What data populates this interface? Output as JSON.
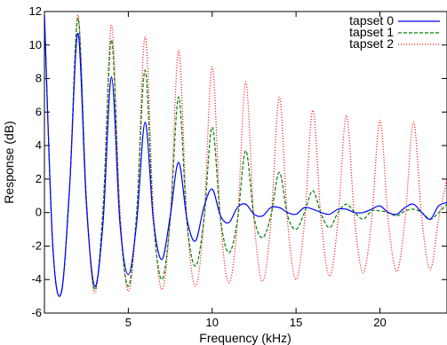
{
  "chart_data": {
    "type": "line",
    "title": "",
    "xlabel": "Frequency (kHz)",
    "ylabel": "Response (dB)",
    "xlim": [
      0,
      24
    ],
    "ylim": [
      -6,
      12
    ],
    "xticks": [
      5,
      10,
      15,
      20
    ],
    "yticks": [
      -6,
      -4,
      -2,
      0,
      2,
      4,
      6,
      8,
      10,
      12
    ],
    "grid": false,
    "legend_position": "top-right",
    "series": [
      {
        "name": "tapset 0",
        "color": "#0000ff",
        "dash": "solid",
        "x": [
          0,
          0.5,
          1,
          1.5,
          2,
          2.5,
          3,
          3.5,
          4,
          4.5,
          5,
          5.5,
          6,
          6.5,
          7,
          7.5,
          8,
          8.5,
          9,
          9.5,
          10,
          10.5,
          11,
          11.5,
          12,
          12.5,
          13,
          13.5,
          14,
          14.5,
          15,
          15.5,
          16,
          16.5,
          17,
          17.5,
          18,
          18.5,
          19,
          19.5,
          20,
          20.5,
          21,
          21.5,
          22,
          22.5,
          23,
          23.5,
          24
        ],
        "y": [
          11.8,
          -2.0,
          -4.8,
          1.5,
          10.7,
          0.5,
          -4.4,
          -0.5,
          8.1,
          -0.6,
          -3.7,
          -0.6,
          5.4,
          -0.5,
          -2.8,
          -0.2,
          3.0,
          -0.4,
          -1.7,
          0.3,
          1.4,
          -0.2,
          -0.6,
          0.3,
          0.5,
          -0.1,
          -0.2,
          0.3,
          0.3,
          0.0,
          -0.1,
          0.3,
          0.2,
          0.0,
          -0.1,
          0.2,
          0.2,
          0.0,
          0.0,
          0.2,
          0.4,
          0.0,
          -0.1,
          0.3,
          0.5,
          0.0,
          -0.4,
          0.4,
          0.6
        ]
      },
      {
        "name": "tapset 1",
        "color": "#008000",
        "dash": "4,2",
        "x": [
          0,
          0.5,
          1,
          1.5,
          2,
          2.5,
          3,
          3.5,
          4,
          4.5,
          5,
          5.5,
          6,
          6.5,
          7,
          7.5,
          8,
          8.5,
          9,
          9.5,
          10,
          10.5,
          11,
          11.5,
          12,
          12.5,
          13,
          13.5,
          14,
          14.5,
          15,
          15.5,
          16,
          16.5,
          17,
          17.5,
          18,
          18.5,
          19,
          19.5,
          20,
          20.5,
          21,
          21.5,
          22,
          22.5,
          23,
          23.5,
          24
        ],
        "y": [
          11.8,
          -2.0,
          -4.8,
          1.5,
          11.6,
          0.8,
          -4.6,
          0.3,
          10.3,
          -0.3,
          -4.4,
          0.0,
          8.5,
          -0.5,
          -4.0,
          -0.4,
          6.9,
          -0.6,
          -3.2,
          -0.5,
          5.1,
          -0.4,
          -2.4,
          -0.5,
          3.7,
          -0.3,
          -1.5,
          -0.2,
          2.4,
          -0.2,
          -1.0,
          0.0,
          1.3,
          -0.1,
          -0.9,
          0.0,
          0.5,
          0.0,
          -0.4,
          0.1,
          0.1,
          0.0,
          -0.2,
          0.1,
          0.2,
          0.0,
          -0.4,
          0.0,
          0.5
        ]
      },
      {
        "name": "tapset 2",
        "color": "#ff0000",
        "dash": "1,2",
        "x": [
          0,
          0.5,
          1,
          1.5,
          2,
          2.5,
          3,
          3.5,
          4,
          4.5,
          5,
          5.5,
          6,
          6.5,
          7,
          7.5,
          8,
          8.5,
          9,
          9.5,
          10,
          10.5,
          11,
          11.5,
          12,
          12.5,
          13,
          13.5,
          14,
          14.5,
          15,
          15.5,
          16,
          16.5,
          17,
          17.5,
          18,
          18.5,
          19,
          19.5,
          20,
          20.5,
          21,
          21.5,
          22,
          22.5,
          23,
          23.5,
          24
        ],
        "y": [
          11.8,
          -2.0,
          -4.8,
          1.5,
          11.8,
          0.8,
          -4.8,
          0.5,
          11.2,
          0.3,
          -4.7,
          0.0,
          10.5,
          0.0,
          -4.6,
          -0.3,
          9.7,
          -0.5,
          -4.4,
          -0.5,
          8.7,
          -0.5,
          -4.2,
          -0.6,
          7.8,
          -0.5,
          -4.1,
          -0.6,
          6.9,
          -0.6,
          -4.0,
          -0.6,
          6.1,
          -0.5,
          -3.8,
          -0.5,
          5.8,
          -0.5,
          -3.6,
          -0.5,
          5.5,
          -0.5,
          -3.5,
          -0.4,
          5.4,
          -0.4,
          -3.4,
          -0.4,
          2.0
        ]
      }
    ]
  }
}
